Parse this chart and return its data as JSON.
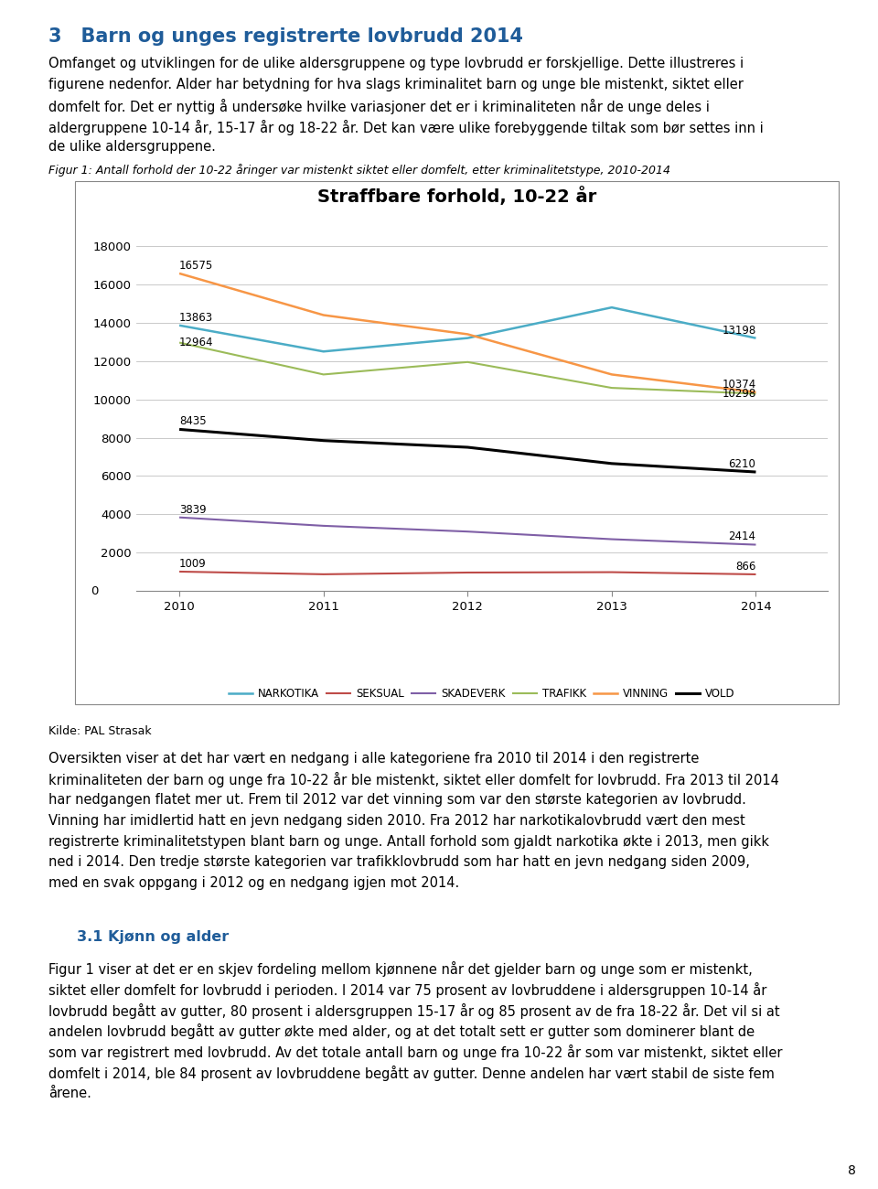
{
  "title": "Straffbare forhold, 10-22 år",
  "years": [
    2010,
    2011,
    2012,
    2013,
    2014
  ],
  "series": {
    "NARKOTIKA": {
      "values": [
        13863,
        12500,
        13200,
        14800,
        13198
      ],
      "color": "#4bacc6",
      "linewidth": 1.8
    },
    "SEKSUAL": {
      "values": [
        1009,
        870,
        960,
        980,
        866
      ],
      "color": "#be4b48",
      "linewidth": 1.5
    },
    "SKADEVERK": {
      "values": [
        3839,
        3400,
        3100,
        2700,
        2414
      ],
      "color": "#7f5fa6",
      "linewidth": 1.5
    },
    "TRAFIKK": {
      "values": [
        12964,
        11300,
        11950,
        10600,
        10298
      ],
      "color": "#9bbb59",
      "linewidth": 1.5
    },
    "VINNING": {
      "values": [
        16575,
        14400,
        13400,
        11300,
        10374
      ],
      "color": "#f79646",
      "linewidth": 1.8
    },
    "VOLD": {
      "values": [
        8435,
        7850,
        7500,
        6650,
        6210
      ],
      "color": "#000000",
      "linewidth": 2.2
    }
  },
  "start_labels": {
    "NARKOTIKA": 13863,
    "SEKSUAL": 1009,
    "SKADEVERK": 3839,
    "TRAFIKK": 12964,
    "VINNING": 16575,
    "VOLD": 8435
  },
  "end_labels": {
    "NARKOTIKA": 13198,
    "SEKSUAL": 866,
    "SKADEVERK": 2414,
    "TRAFIKK": 10298,
    "VINNING": 10374,
    "VOLD": 6210
  },
  "ylim": [
    0,
    18000
  ],
  "yticks": [
    0,
    2000,
    4000,
    6000,
    8000,
    10000,
    12000,
    14000,
    16000,
    18000
  ],
  "page_title_num": "3",
  "page_title_text": "  Barn og unges registrerte lovbrudd 2014",
  "figcaption": "Figur 1: Antall forhold der 10-22 åringer var mistenkt siktet eller domfelt, etter kriminalitetstype, 2010-2014",
  "kilde": "Kilde: PAL Strasak",
  "intro_text_lines": [
    "Omfanget og utviklingen for de ulike aldersgruppene og type lovbrudd er forskjellige. Dette illustreres i",
    "figurene nedenfor. Alder har betydning for hva slags kriminalitet barn og unge ble mistenkt, siktet eller",
    "domfelt for. Det er nyttig å undersøke hvilke variasjoner det er i kriminaliteten når de unge deles i",
    "aldergruppene 10-14 år, 15-17 år og 18-22 år. Det kan være ulike forebyggende tiltak som bør settes inn i",
    "de ulike aldersgruppene."
  ],
  "para1_lines": [
    "Oversikten viser at det har vært en nedgang i alle kategoriene fra 2010 til 2014 i den registrerte",
    "kriminaliteten der barn og unge fra 10-22 år ble mistenkt, siktet eller domfelt for lovbrudd. Fra 2013 til 2014",
    "har nedgangen flatet mer ut. Frem til 2012 var det vinning som var den største kategorien av lovbrudd.",
    "Vinning har imidlertid hatt en jevn nedgang siden 2010. Fra 2012 har narkotikalovbrudd vært den mest",
    "registrerte kriminalitetstypen blant barn og unge. Antall forhold som gjaldt narkotika økte i 2013, men gikk",
    "ned i 2014. Den tredje største kategorien var trafikklovbrudd som har hatt en jevn nedgang siden 2009,",
    "med en svak oppgang i 2012 og en nedgang igjen mot 2014."
  ],
  "section_title": "3.1 Kjønn og alder",
  "para2_lines": [
    "Figur 1 viser at det er en skjev fordeling mellom kjønnene når det gjelder barn og unge som er mistenkt,",
    "siktet eller domfelt for lovbrudd i perioden. I 2014 var 75 prosent av lovbruddene i aldersgruppen 10-14 år",
    "lovbrudd begått av gutter, 80 prosent i aldersgruppen 15-17 år og 85 prosent av de fra 18-22 år. Det vil si at",
    "andelen lovbrudd begått av gutter økte med alder, og at det totalt sett er gutter som dominerer blant de",
    "som var registrert med lovbrudd. Av det totale antall barn og unge fra 10-22 år som var mistenkt, siktet eller",
    "domfelt i 2014, ble 84 prosent av lovbruddene begått av gutter. Denne andelen har vært stabil de siste fem",
    "årene."
  ],
  "page_number": "8",
  "title_color": "#1f5c99",
  "section_title_color": "#1f5c99",
  "background_color": "#ffffff",
  "legend_order": [
    "NARKOTIKA",
    "SEKSUAL",
    "SKADEVERK",
    "TRAFIKK",
    "VINNING",
    "VOLD"
  ]
}
